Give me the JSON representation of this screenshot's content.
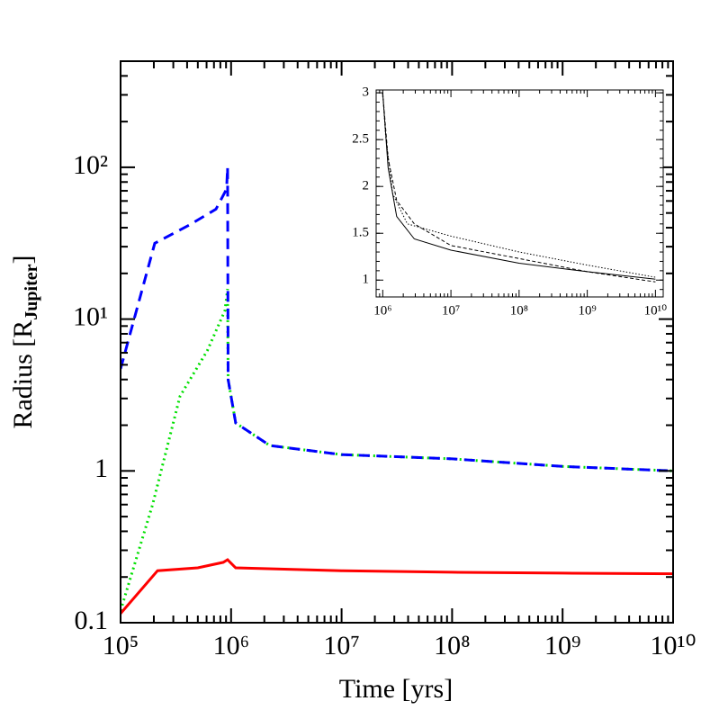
{
  "chart_data": [
    {
      "type": "line",
      "xlog": true,
      "ylog": true,
      "xlabel": "Time [yrs]",
      "ylabel": [
        "Radius [R",
        "Jupiter",
        "]"
      ],
      "xlim": [
        100000,
        10000000000
      ],
      "ylim": [
        0.1,
        500
      ],
      "xticks": [
        {
          "value": 100000,
          "label": "10⁵"
        },
        {
          "value": 1000000,
          "label": "10⁶"
        },
        {
          "value": 10000000,
          "label": "10⁷"
        },
        {
          "value": 100000000,
          "label": "10⁸"
        },
        {
          "value": 1000000000,
          "label": "10⁹"
        },
        {
          "value": 10000000000,
          "label": "10¹⁰"
        }
      ],
      "yticks": [
        0.1,
        1,
        {
          "value": 10,
          "label": "10¹"
        },
        {
          "value": 100,
          "label": "10²"
        }
      ],
      "series": [
        {
          "color": "#00e000",
          "dash": "dotted",
          "width": 3,
          "x": [
            100000,
            195000,
            345000,
            610000,
            880000,
            930000,
            940000,
            1100000,
            2240000,
            10000000,
            100000000,
            1000000000,
            10000000000
          ],
          "values": [
            0.12,
            0.6,
            3.1,
            6.2,
            11.4,
            15.8,
            4.0,
            2.07,
            1.47,
            1.28,
            1.2,
            1.07,
            1.0
          ]
        },
        {
          "color": "#0000ff",
          "dash": "dashed",
          "width": 3,
          "x": [
            100000,
            204000,
            420000,
            730000,
            910000,
            930000,
            940000,
            1100000,
            2240000,
            10000000,
            100000000,
            1000000000,
            10000000000
          ],
          "values": [
            4.7,
            31.6,
            41.7,
            53,
            72,
            100,
            4.0,
            2.07,
            1.47,
            1.28,
            1.2,
            1.07,
            1.0
          ]
        },
        {
          "color": "#ff0000",
          "dash": "solid",
          "width": 3,
          "x": [
            100000,
            216000,
            500000,
            850000,
            930000,
            1100000,
            10000000,
            100000000,
            1000000000,
            10000000000
          ],
          "values": [
            0.115,
            0.22,
            0.23,
            0.25,
            0.26,
            0.23,
            0.22,
            0.215,
            0.212,
            0.21
          ]
        }
      ]
    },
    {
      "type": "line",
      "xlog": true,
      "ylog": false,
      "xlim": [
        800000,
        13000000000
      ],
      "ylim": [
        0.82,
        3.03
      ],
      "xticks": [
        {
          "value": 1000000,
          "label": "10⁶"
        },
        {
          "value": 10000000,
          "label": "10⁷"
        },
        {
          "value": 100000000,
          "label": "10⁸"
        },
        {
          "value": 1000000000,
          "label": "10⁹"
        },
        {
          "value": 10000000000,
          "label": "10¹⁰"
        }
      ],
      "yticks": [
        1,
        1.5,
        2,
        2.5,
        3
      ],
      "series": [
        {
          "color": "#000000",
          "dash": "solid",
          "width": 1,
          "x": [
            1000000,
            1200000,
            1600000,
            2900000,
            10000000,
            100000000,
            1000000000,
            10000000000
          ],
          "values": [
            3.0,
            2.2,
            1.68,
            1.44,
            1.32,
            1.18,
            1.09,
            1.01
          ]
        },
        {
          "color": "#000000",
          "dash": "dashed",
          "width": 1,
          "x": [
            1000000,
            1200000,
            1600000,
            2900000,
            10000000,
            100000000,
            1000000000,
            10000000000
          ],
          "values": [
            3.0,
            2.3,
            1.85,
            1.6,
            1.37,
            1.23,
            1.09,
            0.98
          ]
        },
        {
          "color": "#000000",
          "dash": "dotted",
          "width": 1,
          "x": [
            1000000,
            1100000,
            1400000,
            2300000,
            10000000,
            100000000,
            1000000000,
            10000000000
          ],
          "values": [
            3.0,
            2.55,
            1.92,
            1.6,
            1.47,
            1.3,
            1.16,
            1.03
          ]
        }
      ]
    }
  ]
}
